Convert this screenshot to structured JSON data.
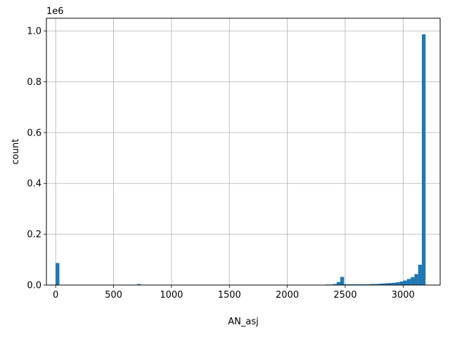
{
  "chart_data": {
    "type": "bar",
    "subtype": "histogram",
    "xlabel": "AN_asj",
    "ylabel": "count",
    "y_offset_label": "1e6",
    "xlim": [
      -80,
      3320
    ],
    "ylim": [
      0,
      1.05
    ],
    "y_scale_note": "values in units of 1e6",
    "grid": true,
    "x_ticks": [
      0,
      500,
      1000,
      1500,
      2000,
      2500,
      3000
    ],
    "y_ticks": [
      0.0,
      0.2,
      0.4,
      0.6,
      0.8,
      1.0
    ],
    "y_tick_labels": [
      "0.0",
      "0.2",
      "0.4",
      "0.6",
      "0.8",
      "1.0"
    ],
    "bar_color": "#1f77b4",
    "bins": [
      {
        "x0": 0,
        "x1": 32,
        "value": 0.087
      },
      {
        "x0": 702,
        "x1": 734,
        "value": 0.004
      },
      {
        "x0": 2330,
        "x1": 2362,
        "value": 0.002
      },
      {
        "x0": 2362,
        "x1": 2394,
        "value": 0.002
      },
      {
        "x0": 2394,
        "x1": 2426,
        "value": 0.004
      },
      {
        "x0": 2426,
        "x1": 2458,
        "value": 0.012
      },
      {
        "x0": 2458,
        "x1": 2490,
        "value": 0.032
      },
      {
        "x0": 2490,
        "x1": 2522,
        "value": 0.003
      },
      {
        "x0": 2522,
        "x1": 2554,
        "value": 0.003
      },
      {
        "x0": 2554,
        "x1": 2586,
        "value": 0.003
      },
      {
        "x0": 2586,
        "x1": 2618,
        "value": 0.003
      },
      {
        "x0": 2618,
        "x1": 2650,
        "value": 0.003
      },
      {
        "x0": 2650,
        "x1": 2682,
        "value": 0.003
      },
      {
        "x0": 2682,
        "x1": 2714,
        "value": 0.003
      },
      {
        "x0": 2714,
        "x1": 2746,
        "value": 0.004
      },
      {
        "x0": 2746,
        "x1": 2778,
        "value": 0.004
      },
      {
        "x0": 2778,
        "x1": 2810,
        "value": 0.005
      },
      {
        "x0": 2810,
        "x1": 2842,
        "value": 0.006
      },
      {
        "x0": 2842,
        "x1": 2874,
        "value": 0.007
      },
      {
        "x0": 2874,
        "x1": 2906,
        "value": 0.008
      },
      {
        "x0": 2906,
        "x1": 2938,
        "value": 0.009
      },
      {
        "x0": 2938,
        "x1": 2970,
        "value": 0.011
      },
      {
        "x0": 2970,
        "x1": 3002,
        "value": 0.014
      },
      {
        "x0": 3002,
        "x1": 3034,
        "value": 0.018
      },
      {
        "x0": 3034,
        "x1": 3066,
        "value": 0.024
      },
      {
        "x0": 3066,
        "x1": 3098,
        "value": 0.031
      },
      {
        "x0": 3098,
        "x1": 3130,
        "value": 0.043
      },
      {
        "x0": 3130,
        "x1": 3162,
        "value": 0.08
      },
      {
        "x0": 3162,
        "x1": 3194,
        "value": 0.987
      }
    ]
  }
}
